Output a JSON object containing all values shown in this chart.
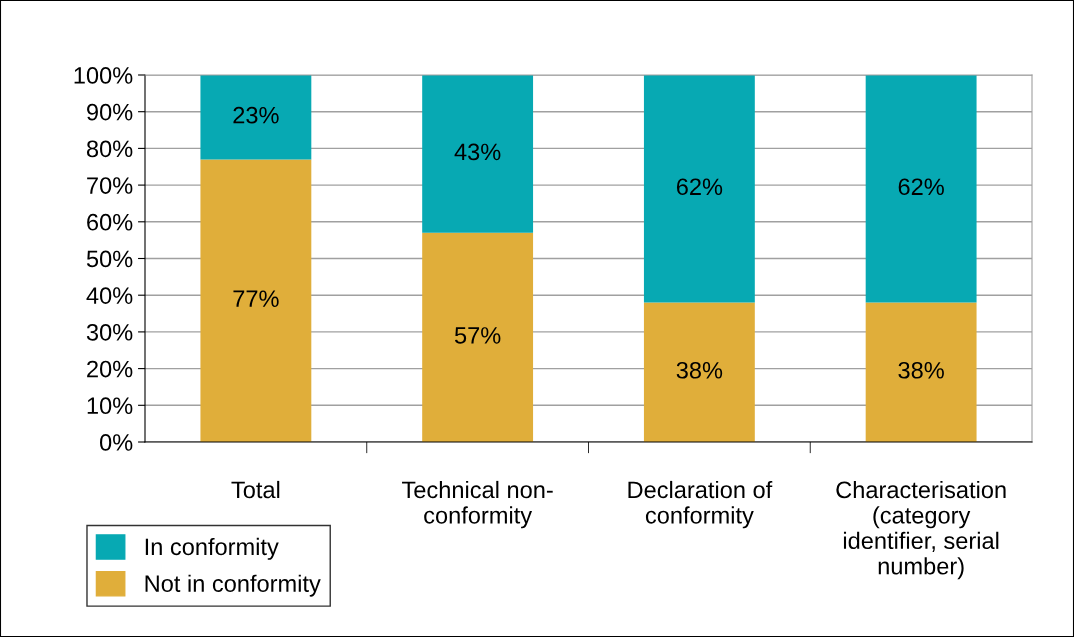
{
  "chart_data": {
    "type": "bar",
    "stacked": true,
    "categories": [
      "Total",
      "Technical non-\nconformity",
      "Declaration of\nconformity",
      "Characterisation\n(category\nidentifier, serial\nnumber)"
    ],
    "series": [
      {
        "name": "Not in conformity",
        "color": "#e0ae3a",
        "values": [
          77,
          57,
          38,
          38
        ],
        "value_labels": [
          "77%",
          "57%",
          "38%",
          "38%"
        ]
      },
      {
        "name": "In conformity",
        "color": "#07a9b3",
        "values": [
          23,
          43,
          62,
          62
        ],
        "value_labels": [
          "23%",
          "43%",
          "62%",
          "62%"
        ]
      }
    ],
    "ylim": [
      0,
      100
    ],
    "yticks": [
      {
        "value": 0,
        "label": "0%"
      },
      {
        "value": 10,
        "label": "10%"
      },
      {
        "value": 20,
        "label": "20%"
      },
      {
        "value": 30,
        "label": "30%"
      },
      {
        "value": 40,
        "label": "40%"
      },
      {
        "value": 50,
        "label": "50%"
      },
      {
        "value": 60,
        "label": "60%"
      },
      {
        "value": 70,
        "label": "70%"
      },
      {
        "value": 80,
        "label": "80%"
      },
      {
        "value": 90,
        "label": "90%"
      },
      {
        "value": 100,
        "label": "100%"
      }
    ],
    "grid": "y",
    "legend": "bottom left"
  }
}
